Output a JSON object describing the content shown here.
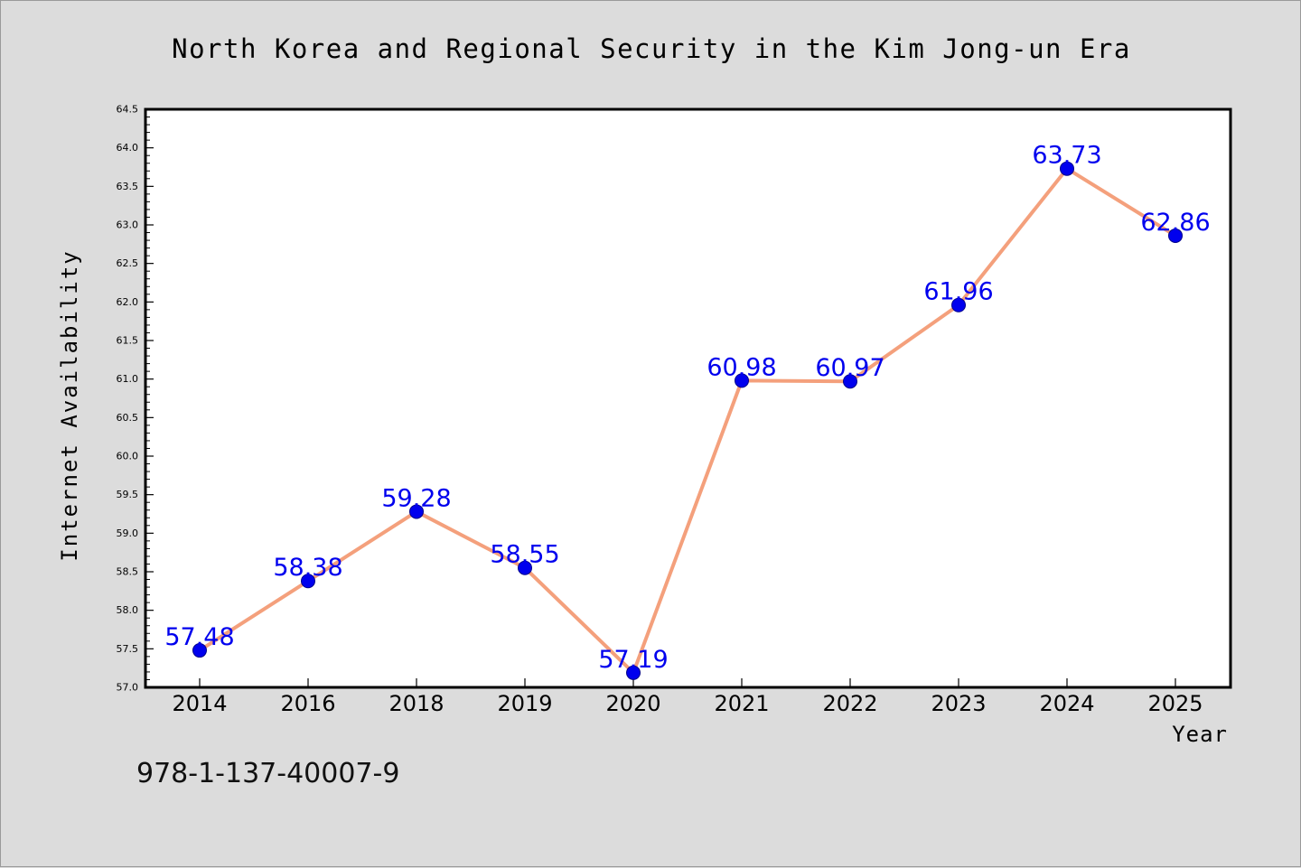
{
  "chart_data": {
    "type": "line",
    "title": "North Korea and Regional Security in the Kim Jong-un Era",
    "xlabel": "Year",
    "ylabel": "Internet Availability",
    "categories": [
      "2014",
      "2016",
      "2018",
      "2019",
      "2020",
      "2021",
      "2022",
      "2023",
      "2024",
      "2025"
    ],
    "series": [
      {
        "values": [
          57.48,
          58.38,
          59.28,
          58.55,
          57.19,
          60.98,
          60.97,
          61.96,
          63.73,
          62.86
        ],
        "data_labels": [
          "57.48",
          "58.38",
          "59.28",
          "58.55",
          "57.19",
          "60.98",
          "60.97",
          "61.96",
          "63.73",
          "62.86"
        ],
        "line_color": "#f4a07c",
        "marker_color": "#0000ee",
        "label_color": "#0000ee"
      }
    ],
    "ylim": [
      57.0,
      64.5
    ],
    "yticks": [
      "57.0",
      "57.5",
      "58.0",
      "58.5",
      "59.0",
      "59.5",
      "60.0",
      "60.5",
      "61.0",
      "61.5",
      "62.0",
      "62.5",
      "63.0",
      "63.5",
      "64.0",
      "64.5"
    ],
    "grid": false,
    "legend": "none",
    "annotation": "978-1-137-40007-9"
  },
  "colors": {
    "background": "#dcdcdc",
    "plot_area": "#ffffff",
    "text": "#000000"
  }
}
